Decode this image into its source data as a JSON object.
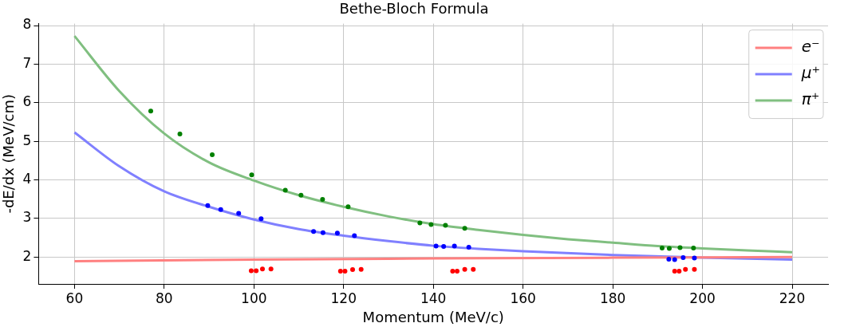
{
  "chart_data": {
    "type": "line",
    "title": "Bethe-Bloch Formula",
    "xlabel": "Momentum (MeV/c)",
    "ylabel": "-dE/dx (MeV/cm)",
    "xlim": [
      52,
      228
    ],
    "xticks": [
      60,
      80,
      100,
      120,
      140,
      160,
      180,
      200,
      220
    ],
    "ylim": [
      1.3,
      8.05
    ],
    "yticks": [
      2,
      3,
      4,
      5,
      6,
      7,
      8
    ],
    "grid": true,
    "legend": "top right",
    "marker": "none",
    "line_style": "solid",
    "series": [
      {
        "name": "e⁻",
        "color": "#ff8080",
        "x": [
          60,
          100,
          140,
          180,
          220
        ],
        "values": [
          1.89,
          1.93,
          1.96,
          1.98,
          2.0
        ]
      },
      {
        "name": "μ⁺",
        "color": "#8080ff",
        "x": [
          60,
          70,
          80,
          90,
          100,
          110,
          120,
          130,
          140,
          150,
          160,
          180,
          200,
          220
        ],
        "values": [
          5.23,
          4.35,
          3.7,
          3.3,
          2.97,
          2.72,
          2.55,
          2.41,
          2.29,
          2.21,
          2.15,
          2.05,
          1.98,
          1.93
        ]
      },
      {
        "name": "π⁺",
        "color": "#80bf80",
        "x": [
          60,
          70,
          80,
          90,
          100,
          110,
          120,
          130,
          140,
          150,
          160,
          170,
          180,
          190,
          200,
          210,
          220
        ],
        "values": [
          7.73,
          6.3,
          5.2,
          4.45,
          3.98,
          3.6,
          3.3,
          3.05,
          2.85,
          2.7,
          2.57,
          2.46,
          2.37,
          2.28,
          2.22,
          2.17,
          2.12
        ]
      },
      {
        "type": "scatter",
        "marker": "circle",
        "color": "#ff0000",
        "x": [
          99.4,
          100.5,
          101.9,
          103.8,
          119.3,
          120.3,
          122,
          123.9,
          144.3,
          145.3,
          147,
          148.9,
          193.8,
          194.8,
          196.2,
          198.2
        ],
        "values": [
          1.64,
          1.64,
          1.69,
          1.69,
          1.63,
          1.63,
          1.67,
          1.68,
          1.63,
          1.63,
          1.68,
          1.68,
          1.63,
          1.63,
          1.68,
          1.68
        ]
      },
      {
        "type": "scatter",
        "marker": "circle",
        "color": "#0000ff",
        "x": [
          89.7,
          92.6,
          96.6,
          101.6,
          113.3,
          115.4,
          118.6,
          122.4,
          140.6,
          142.3,
          144.7,
          147.9,
          192.5,
          193.8,
          195.7,
          198.2
        ],
        "values": [
          3.33,
          3.23,
          3.13,
          2.99,
          2.66,
          2.63,
          2.62,
          2.55,
          2.28,
          2.27,
          2.28,
          2.25,
          1.94,
          1.93,
          1.98,
          1.97
        ]
      },
      {
        "type": "scatter",
        "marker": "circle",
        "color": "#008000",
        "x": [
          77,
          83.5,
          90.7,
          99.5,
          107,
          110.5,
          115.3,
          121,
          137,
          139.5,
          142.7,
          147,
          191,
          192.6,
          195,
          198
        ],
        "values": [
          5.78,
          5.19,
          4.65,
          4.13,
          3.73,
          3.6,
          3.49,
          3.3,
          2.88,
          2.84,
          2.82,
          2.74,
          2.23,
          2.22,
          2.24,
          2.23
        ]
      }
    ]
  }
}
